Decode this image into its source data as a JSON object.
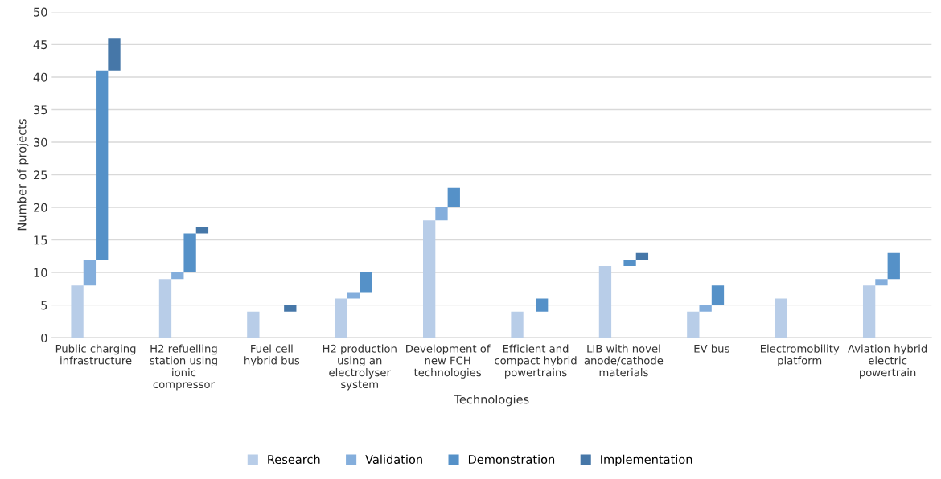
{
  "chart_data": {
    "type": "bar",
    "xlabel": "Technologies",
    "ylabel": "Number of projects",
    "categories": [
      "Public charging infrastructure",
      "H2 refuelling station using ionic compressor",
      "Fuel cell hybrid bus",
      "H2 production using an electrolyser system",
      "Development of new FCH technologies",
      "Efficient and compact hybrid powertrains",
      "LIB with novel anode/cathode materials",
      "EV bus",
      "Electromobility platform",
      "Aviation hybrid electric powertrain"
    ],
    "series": [
      {
        "name": "Research",
        "color": "#b8cde8",
        "values": [
          8,
          9,
          4,
          6,
          18,
          4,
          11,
          4,
          6,
          8
        ],
        "base": [
          0,
          0,
          0,
          0,
          0,
          0,
          0,
          0,
          0,
          0
        ]
      },
      {
        "name": "Validation",
        "color": "#84aedc",
        "values": [
          4,
          1,
          null,
          1,
          2,
          null,
          null,
          1,
          null,
          1
        ],
        "base": [
          8,
          9,
          null,
          6,
          18,
          null,
          null,
          4,
          null,
          8
        ]
      },
      {
        "name": "Demonstration",
        "color": "#5591c8",
        "values": [
          29,
          6,
          null,
          3,
          3,
          2,
          1,
          3,
          null,
          4
        ],
        "base": [
          12,
          10,
          null,
          7,
          20,
          4,
          11,
          5,
          null,
          9
        ]
      },
      {
        "name": "Implementation",
        "color": "#4677a8",
        "values": [
          5,
          1,
          1,
          null,
          null,
          null,
          1,
          null,
          null,
          null
        ],
        "base": [
          41,
          16,
          4,
          null,
          null,
          null,
          12,
          null,
          null,
          null
        ]
      }
    ],
    "ylim": [
      0,
      50
    ],
    "yticks": [
      0,
      5,
      10,
      15,
      20,
      25,
      30,
      35,
      40,
      45,
      50
    ],
    "grid": "y",
    "legend": "bottom"
  }
}
